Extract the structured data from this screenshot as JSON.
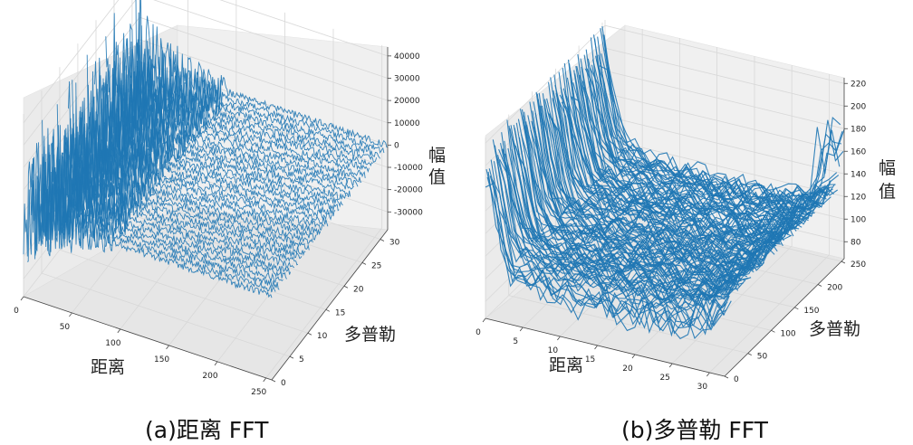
{
  "chart_data": [
    {
      "type": "line",
      "caption": "(a)距离 FFT",
      "xlabel": "距离",
      "ylabel": "多普勒",
      "zlabel": "幅值",
      "x_ticks": [
        "0",
        "50",
        "100",
        "150",
        "200",
        "250"
      ],
      "y_ticks": [
        "0",
        "5",
        "10",
        "15",
        "20",
        "25",
        "30"
      ],
      "z_ticks": [
        "40000",
        "30000",
        "20000",
        "10000",
        "0",
        "-10000",
        "-20000",
        "-30000"
      ],
      "xlim": [
        0,
        256
      ],
      "ylim": [
        0,
        32
      ],
      "zlim": [
        -38000,
        44000
      ],
      "series_color": "#1f77b4",
      "series_count": 32,
      "samples_per_series": 256
    },
    {
      "type": "line",
      "caption": "(b)多普勒 FFT",
      "xlabel": "距离",
      "ylabel": "多普勒",
      "zlabel": "幅值",
      "x_ticks": [
        "0",
        "5",
        "10",
        "15",
        "20",
        "25",
        "30"
      ],
      "y_ticks": [
        "0",
        "50",
        "100",
        "150",
        "200",
        "250"
      ],
      "z_ticks": [
        "220",
        "200",
        "180",
        "160",
        "140",
        "120",
        "100",
        "80"
      ],
      "xlim": [
        0,
        32
      ],
      "ylim": [
        0,
        256
      ],
      "zlim": [
        65,
        225
      ],
      "series_color": "#1f77b4",
      "series_count": 128,
      "samples_per_series": 32
    }
  ]
}
